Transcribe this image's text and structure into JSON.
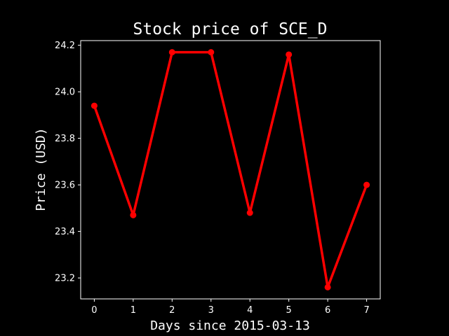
{
  "chart_data": {
    "type": "line",
    "title": "Stock price of SCE_D",
    "xlabel": "Days since 2015-03-13",
    "ylabel": "Price (USD)",
    "x": [
      0,
      1,
      2,
      3,
      4,
      5,
      6,
      7
    ],
    "series": [
      {
        "values": [
          23.94,
          23.47,
          24.17,
          24.17,
          23.48,
          24.16,
          23.16,
          23.6
        ],
        "color": "#ff0000"
      }
    ],
    "xlim": [
      -0.35,
      7.35
    ],
    "ylim": [
      23.11,
      24.22
    ],
    "xticks": [
      0,
      1,
      2,
      3,
      4,
      5,
      6,
      7
    ],
    "xtick_labels": [
      "0",
      "1",
      "2",
      "3",
      "4",
      "5",
      "6",
      "7"
    ],
    "yticks": [
      23.2,
      23.4,
      23.6,
      23.8,
      24.0,
      24.2
    ],
    "ytick_labels": [
      "23.2",
      "23.4",
      "23.6",
      "23.8",
      "24.0",
      "24.2"
    ],
    "grid": false,
    "legend": "none",
    "background_color": "#000000",
    "foreground_color": "#ffffff"
  }
}
